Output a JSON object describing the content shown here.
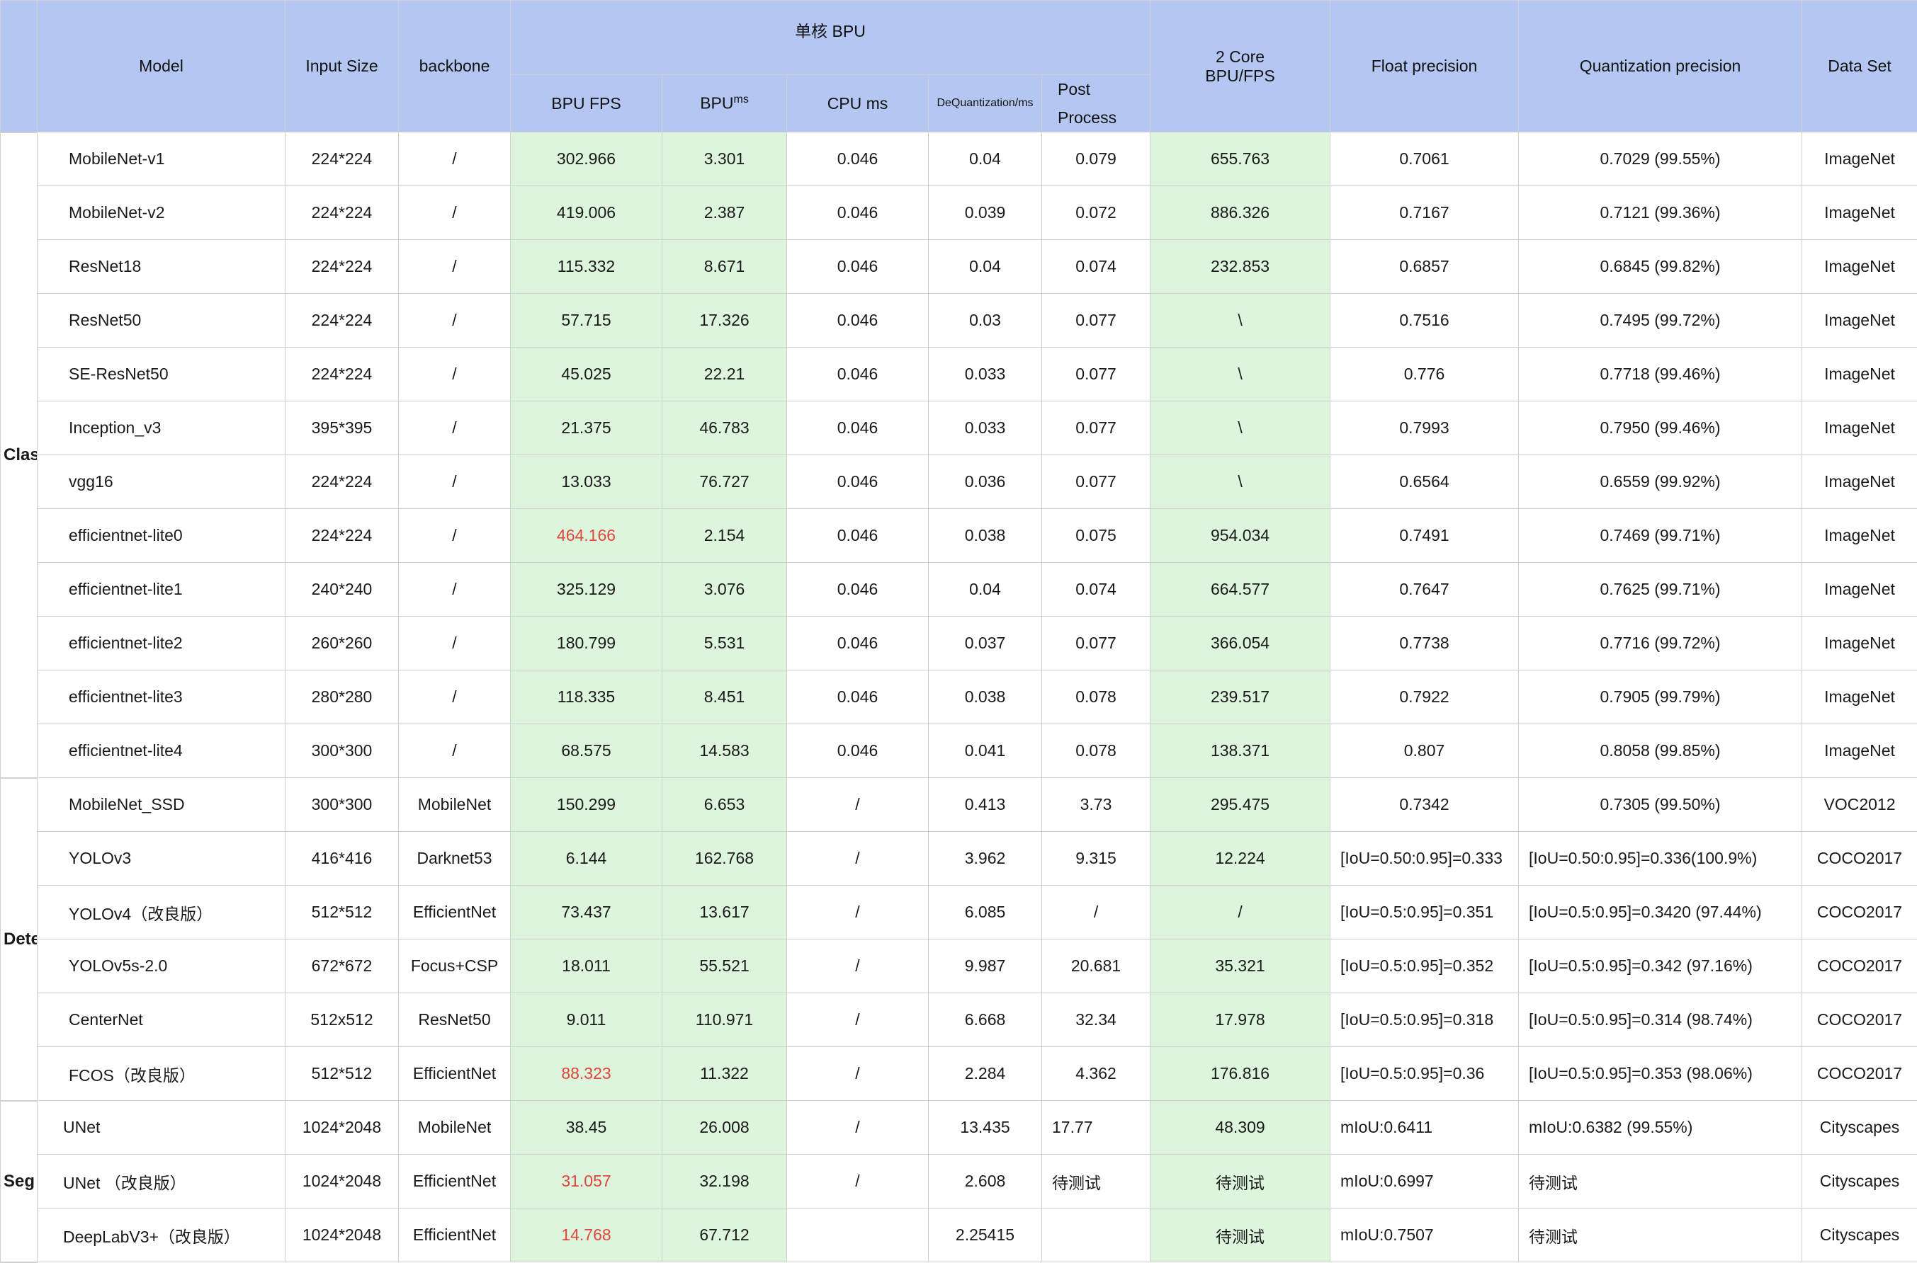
{
  "header": {
    "model": "Model",
    "input_size": "Input Size",
    "backbone": "backbone",
    "single_core": "单核 BPU",
    "bpu_fps": "BPU FPS",
    "bpu_ms": "BPU",
    "bpu_ms_sup": "ms",
    "cpu_ms": "CPU   ms",
    "dequant": "DeQuantization/ms",
    "post_process_1": "Post",
    "post_process_2": "Process",
    "two_core_1": "2 Core",
    "two_core_2": "BPU/FPS",
    "float_precision": "Float precision",
    "quant_precision": "Quantization precision",
    "dataset": "Data Set"
  },
  "categories": {
    "classify": "Classify",
    "detect": "Detect",
    "seg": "Seg"
  },
  "rows": [
    {
      "model": "MobileNet-v1",
      "input": "224*224",
      "backbone": "/",
      "bpu_fps": "302.966",
      "bpu_ms": "3.301",
      "cpu_ms": "0.046",
      "dequant": "0.04",
      "post": "0.079",
      "two_core": "655.763",
      "float": "0.7061",
      "quant": "0.7029 (99.55%)",
      "dataset": "ImageNet"
    },
    {
      "model": "MobileNet-v2",
      "input": "224*224",
      "backbone": "/",
      "bpu_fps": "419.006",
      "bpu_ms": "2.387",
      "cpu_ms": "0.046",
      "dequant": "0.039",
      "post": "0.072",
      "two_core": "886.326",
      "float": "0.7167",
      "quant": "0.7121 (99.36%)",
      "dataset": "ImageNet"
    },
    {
      "model": "ResNet18",
      "input": "224*224",
      "backbone": "/",
      "bpu_fps": "115.332",
      "bpu_ms": "8.671",
      "cpu_ms": "0.046",
      "dequant": "0.04",
      "post": "0.074",
      "two_core": "232.853",
      "float": "0.6857",
      "quant": "0.6845 (99.82%)",
      "dataset": "ImageNet"
    },
    {
      "model": "ResNet50",
      "input": "224*224",
      "backbone": "/",
      "bpu_fps": "57.715",
      "bpu_ms": "17.326",
      "cpu_ms": "0.046",
      "dequant": "0.03",
      "post": "0.077",
      "two_core": "\\",
      "float": "0.7516",
      "quant": "0.7495 (99.72%)",
      "dataset": "ImageNet"
    },
    {
      "model": "SE-ResNet50",
      "input": "224*224",
      "backbone": "/",
      "bpu_fps": "45.025",
      "bpu_ms": "22.21",
      "cpu_ms": "0.046",
      "dequant": "0.033",
      "post": "0.077",
      "two_core": "\\",
      "float": "0.776",
      "quant": "0.7718 (99.46%)",
      "dataset": "ImageNet"
    },
    {
      "model": "Inception_v3",
      "input": "395*395",
      "backbone": "/",
      "bpu_fps": "21.375",
      "bpu_ms": "46.783",
      "cpu_ms": "0.046",
      "dequant": "0.033",
      "post": "0.077",
      "two_core": "\\",
      "float": "0.7993",
      "quant": "0.7950 (99.46%)",
      "dataset": "ImageNet"
    },
    {
      "model": "vgg16",
      "input": "224*224",
      "backbone": "/",
      "bpu_fps": "13.033",
      "bpu_ms": "76.727",
      "cpu_ms": "0.046",
      "dequant": "0.036",
      "post": "0.077",
      "two_core": "\\",
      "float": "0.6564",
      "quant": "0.6559 (99.92%)",
      "dataset": "ImageNet"
    },
    {
      "model": "efficientnet-lite0",
      "input": "224*224",
      "backbone": "/",
      "bpu_fps": "464.166",
      "bpu_ms": "2.154",
      "cpu_ms": "0.046",
      "dequant": "0.038",
      "post": "0.075",
      "two_core": "954.034",
      "float": "0.7491",
      "quant": "0.7469 (99.71%)",
      "dataset": "ImageNet"
    },
    {
      "model": "efficientnet-lite1",
      "input": "240*240",
      "backbone": "/",
      "bpu_fps": "325.129",
      "bpu_ms": "3.076",
      "cpu_ms": "0.046",
      "dequant": "0.04",
      "post": "0.074",
      "two_core": "664.577",
      "float": "0.7647",
      "quant": "0.7625 (99.71%)",
      "dataset": "ImageNet"
    },
    {
      "model": "efficientnet-lite2",
      "input": "260*260",
      "backbone": "/",
      "bpu_fps": "180.799",
      "bpu_ms": "5.531",
      "cpu_ms": "0.046",
      "dequant": "0.037",
      "post": "0.077",
      "two_core": "366.054",
      "float": "0.7738",
      "quant": "0.7716 (99.72%)",
      "dataset": "ImageNet"
    },
    {
      "model": "efficientnet-lite3",
      "input": "280*280",
      "backbone": "/",
      "bpu_fps": "118.335",
      "bpu_ms": "8.451",
      "cpu_ms": "0.046",
      "dequant": "0.038",
      "post": "0.078",
      "two_core": "239.517",
      "float": "0.7922",
      "quant": "0.7905 (99.79%)",
      "dataset": "ImageNet"
    },
    {
      "model": "efficientnet-lite4",
      "input": "300*300",
      "backbone": "/",
      "bpu_fps": "68.575",
      "bpu_ms": "14.583",
      "cpu_ms": "0.046",
      "dequant": "0.041",
      "post": "0.078",
      "two_core": "138.371",
      "float": "0.807",
      "quant": "0.8058 (99.85%)",
      "dataset": "ImageNet"
    },
    {
      "model": "MobileNet_SSD",
      "input": "300*300",
      "backbone": "MobileNet",
      "bpu_fps": "150.299",
      "bpu_ms": "6.653",
      "cpu_ms": "/",
      "dequant": "0.413",
      "post": "3.73",
      "two_core": "295.475",
      "float": "0.7342",
      "quant": "0.7305 (99.50%)",
      "dataset": "VOC2012"
    },
    {
      "model": "YOLOv3",
      "input": "416*416",
      "backbone": "Darknet53",
      "bpu_fps": "6.144",
      "bpu_ms": "162.768",
      "cpu_ms": "/",
      "dequant": "3.962",
      "post": "9.315",
      "two_core": "12.224",
      "float": "[IoU=0.50:0.95]=0.333",
      "quant": "[IoU=0.50:0.95]=0.336(100.9%)",
      "dataset": "COCO2017"
    },
    {
      "model": "YOLOv4（改良版）",
      "input": "512*512",
      "backbone": "EfficientNet",
      "bpu_fps": "73.437",
      "bpu_ms": "13.617",
      "cpu_ms": "/",
      "dequant": "6.085",
      "post": "/",
      "two_core": "/",
      "float": "[IoU=0.5:0.95]=0.351",
      "quant": "[IoU=0.5:0.95]=0.3420 (97.44%)",
      "dataset": "COCO2017"
    },
    {
      "model": "YOLOv5s-2.0",
      "input": "672*672",
      "backbone": "Focus+CSP",
      "bpu_fps": "18.011",
      "bpu_ms": "55.521",
      "cpu_ms": "/",
      "dequant": "9.987",
      "post": "20.681",
      "two_core": "35.321",
      "float": "[IoU=0.5:0.95]=0.352",
      "quant": "[IoU=0.5:0.95]=0.342 (97.16%)",
      "dataset": "COCO2017"
    },
    {
      "model": "CenterNet",
      "input": "512x512",
      "backbone": "ResNet50",
      "bpu_fps": "9.011",
      "bpu_ms": "110.971",
      "cpu_ms": "/",
      "dequant": "6.668",
      "post": "32.34",
      "two_core": "17.978",
      "float": "[IoU=0.5:0.95]=0.318",
      "quant": "[IoU=0.5:0.95]=0.314 (98.74%)",
      "dataset": "COCO2017"
    },
    {
      "model": "FCOS（改良版）",
      "input": "512*512",
      "backbone": "EfficientNet",
      "bpu_fps": "88.323",
      "bpu_ms": "11.322",
      "cpu_ms": "/",
      "dequant": "2.284",
      "post": "4.362",
      "two_core": "176.816",
      "float": "[IoU=0.5:0.95]=0.36",
      "quant": "[IoU=0.5:0.95]=0.353 (98.06%)",
      "dataset": "COCO2017"
    },
    {
      "model": "UNet",
      "input": "1024*2048",
      "backbone": "MobileNet",
      "bpu_fps": "38.45",
      "bpu_ms": "26.008",
      "cpu_ms": "/",
      "dequant": "13.435",
      "post": "17.77",
      "two_core": "48.309",
      "float": "mIoU:0.6411",
      "quant": "mIoU:0.6382 (99.55%)",
      "dataset": "Cityscapes"
    },
    {
      "model": "UNet （改良版）",
      "input": "1024*2048",
      "backbone": "EfficientNet",
      "bpu_fps": "31.057",
      "bpu_ms": "32.198",
      "cpu_ms": "/",
      "dequant": "2.608",
      "post": "待测试",
      "two_core": "待测试",
      "float": "mIoU:0.6997",
      "quant": "待测试",
      "dataset": "Cityscapes"
    },
    {
      "model": "DeepLabV3+（改良版）",
      "input": "1024*2048",
      "backbone": "EfficientNet",
      "bpu_fps": "14.768",
      "bpu_ms": "67.712",
      "cpu_ms": "",
      "dequant": "2.25415",
      "post": "",
      "two_core": "待测试",
      "float": "mIoU:0.7507",
      "quant": "待测试",
      "dataset": "Cityscapes"
    }
  ],
  "colors": {
    "header_bg": "#b4c7f3",
    "highlight_bg": "#dcf5dc",
    "highlight_text": "#e0463c"
  }
}
